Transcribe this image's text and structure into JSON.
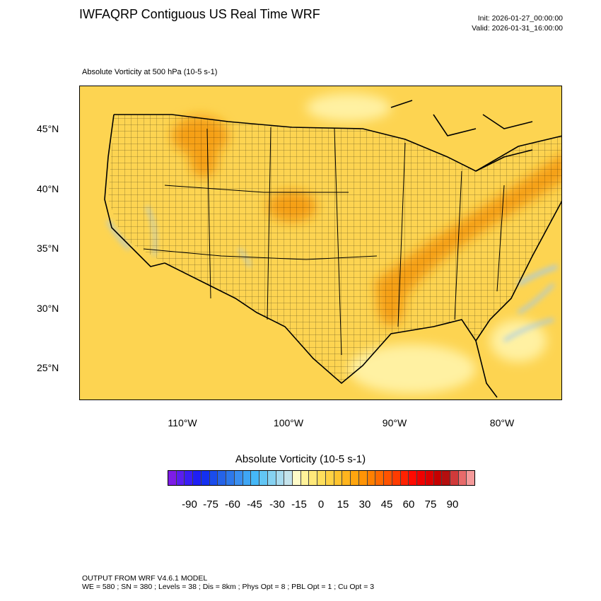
{
  "header": {
    "title": "IWFAQRP Contiguous US Real Time WRF",
    "init": "Init: 2026-01-27_00:00:00",
    "valid": "Valid: 2026-01-31_16:00:00"
  },
  "field_label": "Absolute Vorticity at 500 hPa   (10-5 s-1)",
  "map": {
    "lat_labels": [
      "45°N",
      "40°N",
      "35°N",
      "30°N",
      "25°N"
    ],
    "lon_labels": [
      "110°W",
      "100°W",
      "90°W",
      "80°W"
    ],
    "background_color": "#fdd451",
    "highlight_color": "#f6a015",
    "low_color": "#fff1a2",
    "negative_color": "#9fc9ef"
  },
  "colorbar": {
    "title": "Absolute Vorticity  (10-5 s-1)",
    "tick_labels": [
      "-90",
      "-75",
      "-60",
      "-45",
      "-30",
      "-15",
      "0",
      "15",
      "30",
      "45",
      "60",
      "75",
      "90"
    ],
    "colors": [
      "#7d1ce6",
      "#5a1ef0",
      "#3a1ef5",
      "#1f1ff5",
      "#1430f0",
      "#1a4cec",
      "#2563e8",
      "#2d78ea",
      "#3a8ff0",
      "#3fa6f4",
      "#45b8f8",
      "#62c6f5",
      "#86d2f2",
      "#a8dbef",
      "#c4e3ec",
      "#fffbc8",
      "#fff29a",
      "#ffe97a",
      "#ffdf5c",
      "#ffd244",
      "#ffc42e",
      "#ffb51e",
      "#ffa50f",
      "#ff9406",
      "#ff8000",
      "#ff6a00",
      "#ff5300",
      "#ff3c00",
      "#ff2200",
      "#ff0a00",
      "#f00000",
      "#dc0000",
      "#c60000",
      "#b40e0e",
      "#d03a3a",
      "#e86a6a",
      "#f59a9a"
    ]
  },
  "footer": {
    "line1": "OUTPUT FROM WRF V4.6.1 MODEL",
    "line2": "WE = 580 ; SN = 380 ; Levels = 38 ; Dis = 8km ; Phys Opt = 8 ; PBL Opt = 1 ; Cu Opt = 3"
  }
}
